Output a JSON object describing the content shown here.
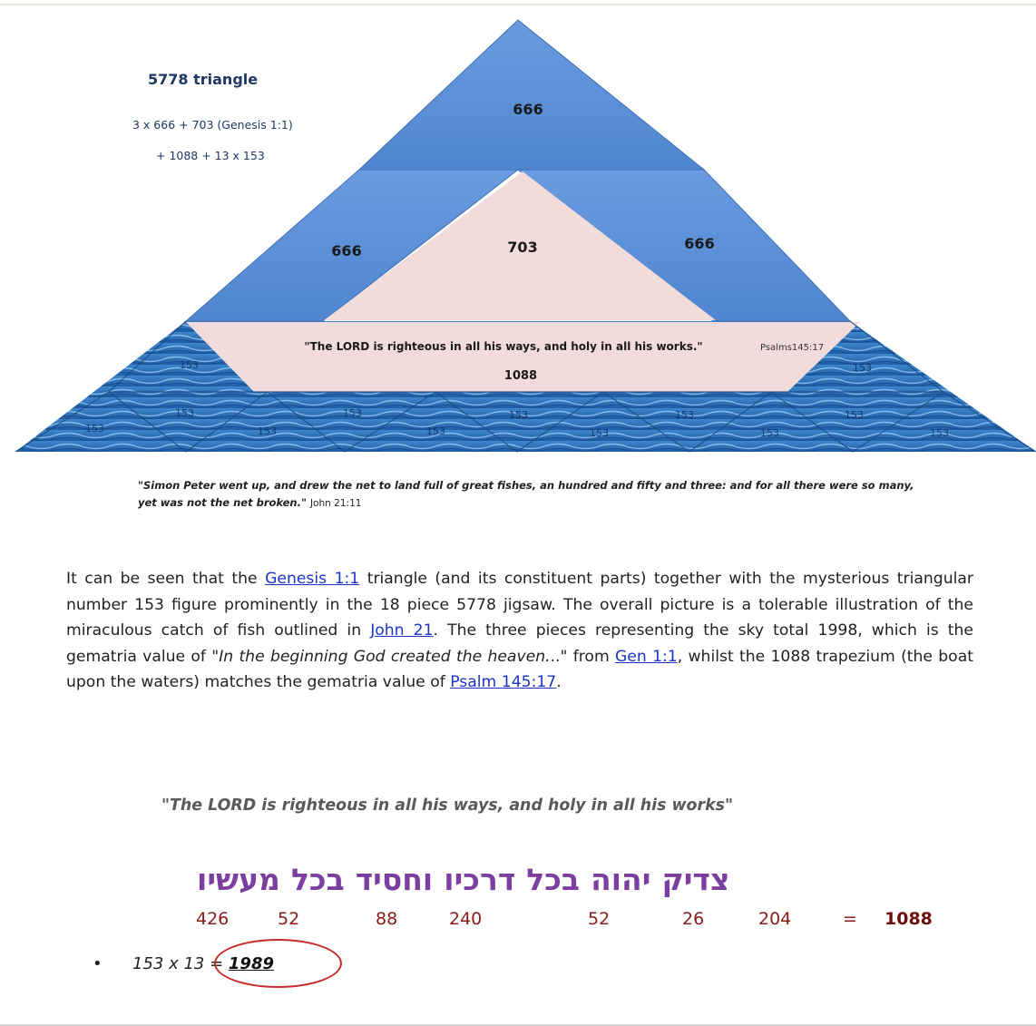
{
  "figure": {
    "title": "5778 triangle",
    "formula_line1": "3 x 666 + 703 (Genesis 1:1)",
    "formula_line2": "+ 1088 + 13 x 153",
    "sky_top": "666",
    "sky_left": "666",
    "center": "703",
    "sky_right": "666",
    "boat_quote": "\"The LORD is righteous in all his ways, and holy in all his works.\"",
    "boat_ref": "Psalms145:17",
    "boat_value": "1088",
    "fish_label": "153",
    "caption": "\"Simon Peter went up, and drew the net to land full of great fishes, an hundred and fifty and three: and for all there were so many, yet was not the net broken.\"",
    "caption_ref": "John 21:11",
    "colors": {
      "sky": "#5b8fd6",
      "inner": "#f2dcdb",
      "water": "#2f6fb8"
    }
  },
  "paragraph": {
    "p1": "It can be seen that the ",
    "link1": "Genesis 1:1",
    "p2": " triangle (and its constituent parts) together with the mysterious triangular number 153 figure prominently in the 18 piece 5778 jigsaw. The overall picture is a tolerable illustration of the miraculous catch of fish outlined in ",
    "link2": "John 21",
    "p3": ". The three pieces representing the sky total 1998, which is the gematria value of \"",
    "italic": "In the beginning God created the heaven.",
    "p4": "..\" from ",
    "link3": "Gen 1:1",
    "p5": ", whilst the 1088 trapezium (the boat upon the waters) matches the gematria value of ",
    "link4": "Psalm 145:17",
    "p6": "."
  },
  "quote": "\"The LORD is righteous in all his ways, and holy in all his works\"",
  "hebrew": {
    "words": [
      "צדיק",
      "יהוה",
      "בכל",
      "דרכיו",
      "וחסיד",
      "בכל",
      "מעשיו"
    ],
    "values": [
      "426",
      "52",
      "88",
      "240",
      "52",
      "26",
      "204"
    ],
    "equals": "=",
    "total": "1088"
  },
  "bullet": {
    "expression": "153 x 13 = ",
    "result": "1989"
  }
}
